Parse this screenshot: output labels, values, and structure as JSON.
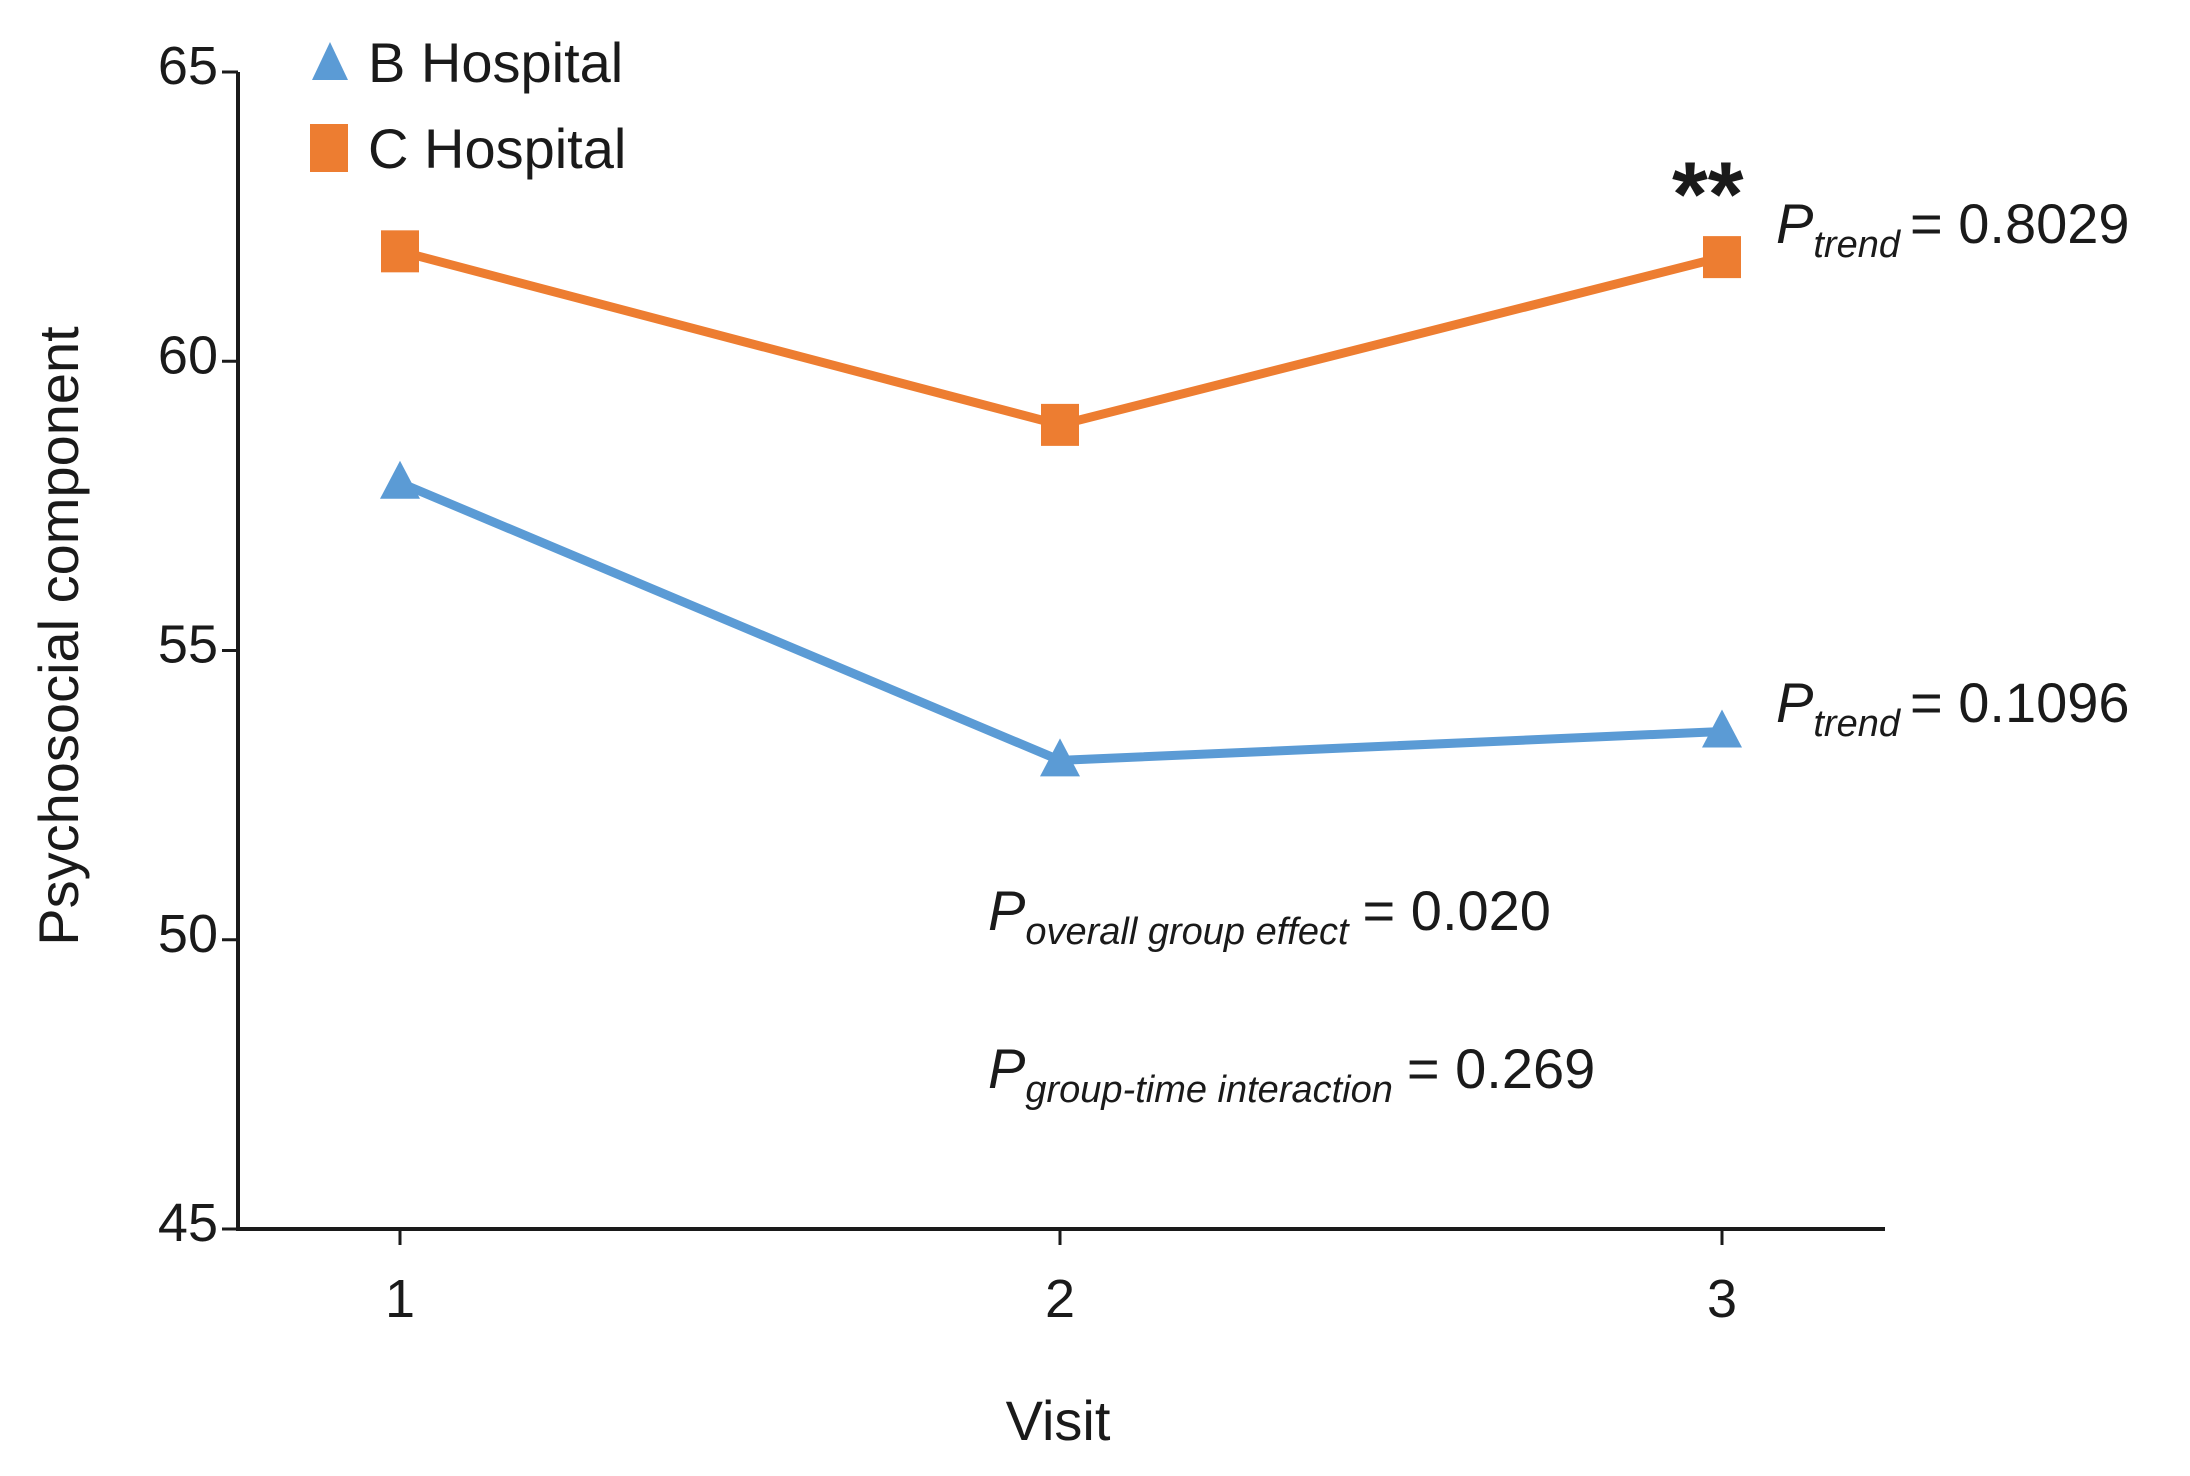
{
  "chart_data": {
    "type": "line",
    "title": "",
    "xlabel": "Visit",
    "ylabel": "Psychosocial component",
    "categories": [
      "1",
      "2",
      "3"
    ],
    "yticks": [
      "45",
      "50",
      "55",
      "60",
      "65"
    ],
    "ylim": [
      45,
      65
    ],
    "grid": false,
    "legend_position": "top-left",
    "series": [
      {
        "name": "B Hospital",
        "marker": "triangle",
        "color": "#5B9BD5",
        "values": [
          57.9,
          53.1,
          53.6
        ]
      },
      {
        "name": "C Hospital",
        "marker": "square",
        "color": "#ED7D31",
        "values": [
          61.9,
          58.9,
          61.8
        ]
      }
    ],
    "annotations": {
      "c_stars": "**",
      "c_trend": {
        "p": "P",
        "sub": "trend",
        "value": "= 0.8029"
      },
      "b_trend": {
        "p": "P",
        "sub": "trend",
        "value": "= 0.1096"
      },
      "overall": {
        "p": "P",
        "sub": "overall group effect",
        "value": "= 0.020"
      },
      "interaction": {
        "p": "P",
        "sub": "group-time interaction",
        "value": "= 0.269"
      }
    }
  }
}
